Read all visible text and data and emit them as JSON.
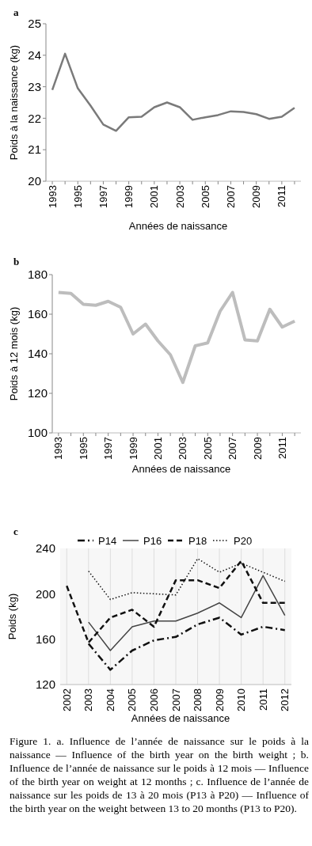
{
  "chart_data": [
    {
      "type": "line",
      "title": "a",
      "xlabel": "Années de naissance",
      "ylabel": "Poids à la naissance (kg)",
      "categories": [
        "1993",
        null,
        "1995",
        null,
        "1997",
        null,
        "1999",
        null,
        "2001",
        null,
        "2003",
        null,
        "2005",
        null,
        "2007",
        null,
        "2009",
        null,
        "2011",
        null
      ],
      "series": [
        {
          "color": "#7a7a7a",
          "values": [
            22.9,
            24.05,
            22.95,
            22.4,
            21.8,
            21.6,
            22.03,
            22.05,
            22.35,
            22.5,
            22.35,
            21.95,
            22.03,
            22.1,
            22.22,
            22.2,
            22.13,
            21.98,
            22.05,
            22.33
          ]
        }
      ],
      "ylim": [
        20,
        25
      ],
      "yticks": [
        20,
        21,
        22,
        23,
        24,
        25
      ],
      "grid": false,
      "legend": false
    },
    {
      "type": "line",
      "title": "b",
      "xlabel": "Années de naissance",
      "ylabel": "Poids à 12 mois (kg)",
      "categories": [
        "1993",
        null,
        "1995",
        null,
        "1997",
        null,
        "1999",
        null,
        "2001",
        null,
        "2003",
        null,
        "2005",
        null,
        "2007",
        null,
        "2009",
        null,
        "2011",
        null
      ],
      "series": [
        {
          "color": "#bdbdbd",
          "values": [
            171,
            170.5,
            165,
            164.5,
            166.5,
            163.5,
            150,
            155,
            146.5,
            139.5,
            125.5,
            144,
            145.5,
            161.5,
            171,
            147,
            146.5,
            162.5,
            153.5,
            156.5
          ]
        }
      ],
      "ylim": [
        100,
        180
      ],
      "yticks": [
        100,
        120,
        140,
        160,
        180
      ],
      "grid": false,
      "legend": false
    },
    {
      "type": "line",
      "title": "c",
      "xlabel": "Années de naissance",
      "ylabel": "Poids (kg)",
      "categories": [
        "2002",
        "2003",
        "2004",
        "2005",
        "2006",
        "2007",
        "2008",
        "2009",
        "2010",
        "2011",
        "2012"
      ],
      "series": [
        {
          "name": "P14",
          "color": "#111111",
          "line_style": "dashdot",
          "values": [
            null,
            156,
            133,
            150,
            159,
            162,
            173,
            179,
            164,
            171,
            168
          ]
        },
        {
          "name": "P16",
          "color": "#444444",
          "line_style": "solid",
          "values": [
            null,
            175,
            150,
            171,
            176,
            176,
            183,
            192,
            179,
            216,
            181
          ]
        },
        {
          "name": "P18",
          "color": "#111111",
          "line_style": "dashed",
          "values": [
            207,
            157,
            179,
            186,
            171,
            212,
            212,
            205,
            229,
            192,
            192
          ]
        },
        {
          "name": "P20",
          "color": "#111111",
          "line_style": "dotted",
          "values": [
            null,
            220,
            195,
            201,
            200,
            199,
            231,
            219,
            227,
            219,
            211
          ]
        }
      ],
      "ylim": [
        120,
        240
      ],
      "yticks": [
        120,
        160,
        200,
        240
      ],
      "grid": "x",
      "legend": "top",
      "annotations": [
        "Figure 1. a. Influence de l’année de naissance sur le poids à la naissance — Influence of the birth year on the birth weight ; b. Influence de l’année de naissance sur le poids à 12 mois — Influence of the birth year on weight at 12 months ; c. Influence de l’année de naissance sur les poids de 13 à 20 mois (P13 à P20) — Influence of the birth year on the weight between 13 to 20 months (P13 to P20)."
      ]
    }
  ]
}
